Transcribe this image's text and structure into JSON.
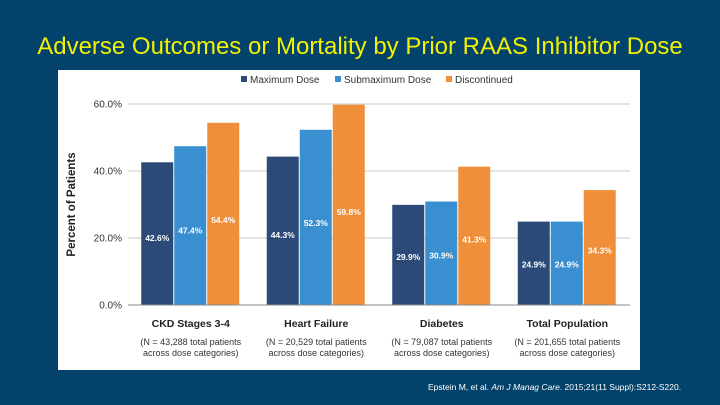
{
  "slide": {
    "title": "Adverse Outcomes or Mortality by Prior RAAS Inhibitor Dose"
  },
  "citation": {
    "authors": "Epstein M, et al. ",
    "journal": "Am J Manag Care",
    "details": ". 2015;21(11 Suppl):S212-S220."
  },
  "colors": {
    "background": "#02426b",
    "title": "#f2f200",
    "maximum_dose": "#2b4a78",
    "submaximum_dose": "#3a8fd0",
    "discontinued": "#ef8f3a"
  },
  "chart_data": {
    "type": "bar",
    "title": "Adverse Outcomes or Mortality by Prior RAAS Inhibitor Dose",
    "xlabel": "",
    "ylabel": "Percent of Patients",
    "ylim": [
      0,
      60
    ],
    "yticks": [
      "0.0%",
      "20.0%",
      "40.0%",
      "60.0%"
    ],
    "grid": true,
    "legend": "top",
    "categories": [
      "CKD Stages 3-4",
      "Heart Failure",
      "Diabetes",
      "Total Population"
    ],
    "category_notes": [
      [
        "(N = 43,288 total patients",
        "across dose categories)"
      ],
      [
        "(N = 20,529 total patients",
        "across dose categories)"
      ],
      [
        "(N = 79,087 total patients",
        "across dose categories)"
      ],
      [
        "(N = 201,655 total patients",
        "across dose categories)"
      ]
    ],
    "series": [
      {
        "name": "Maximum Dose",
        "color": "#2b4a78",
        "values": [
          42.6,
          44.3,
          29.9,
          24.9
        ],
        "labels": [
          "42.6%",
          "44.3%",
          "29.9%",
          "24.9%"
        ]
      },
      {
        "name": "Submaximum Dose",
        "color": "#3a8fd0",
        "values": [
          47.4,
          52.3,
          30.9,
          24.9
        ],
        "labels": [
          "47.4%",
          "52.3%",
          "30.9%",
          "24.9%"
        ]
      },
      {
        "name": "Discontinued",
        "color": "#ef8f3a",
        "values": [
          54.4,
          59.8,
          41.3,
          34.3
        ],
        "labels": [
          "54.4%",
          "59.8%",
          "41.3%",
          "34.3%"
        ]
      }
    ]
  }
}
